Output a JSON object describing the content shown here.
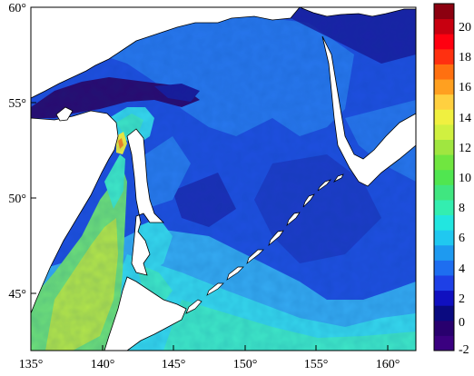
{
  "map": {
    "lon_labels": [
      "135°",
      "140°",
      "145°",
      "150°",
      "155°",
      "160°"
    ],
    "lat_labels": [
      "60°",
      "55°",
      "50°",
      "45°"
    ],
    "extent": {
      "lon": [
        135,
        162
      ],
      "lat": [
        42,
        60
      ]
    }
  },
  "colorbar": {
    "labels": [
      "20",
      "18",
      "16",
      "14",
      "12",
      "10",
      "8",
      "6",
      "4",
      "2",
      "0",
      "-2"
    ],
    "range": [
      -2,
      21
    ],
    "colors": [
      "#3a0080",
      "#28006e",
      "#0a0a80",
      "#1010c0",
      "#1e40e6",
      "#1e6ef0",
      "#1e9af0",
      "#20c8f0",
      "#22e6e0",
      "#33eeb0",
      "#40e680",
      "#50e650",
      "#70e640",
      "#a0e640",
      "#d0f040",
      "#f0f040",
      "#ffd040",
      "#ffa020",
      "#ff7010",
      "#ff3010",
      "#ff0010",
      "#c80010",
      "#8c0010"
    ]
  },
  "field_colors": {
    "deep_purple": "#2a0a70",
    "navy": "#1a1a9c",
    "blue": "#1f4fe0",
    "mid_blue": "#2a7ef0",
    "light_blue": "#35aaf2",
    "cyan": "#36d8ee",
    "aqua": "#3fe8c8",
    "green": "#6ee07a",
    "yellow_green": "#b4e64a",
    "yellow": "#f0f040",
    "orange": "#ff8a20",
    "land": "#ffffff",
    "coast": "#000000"
  }
}
